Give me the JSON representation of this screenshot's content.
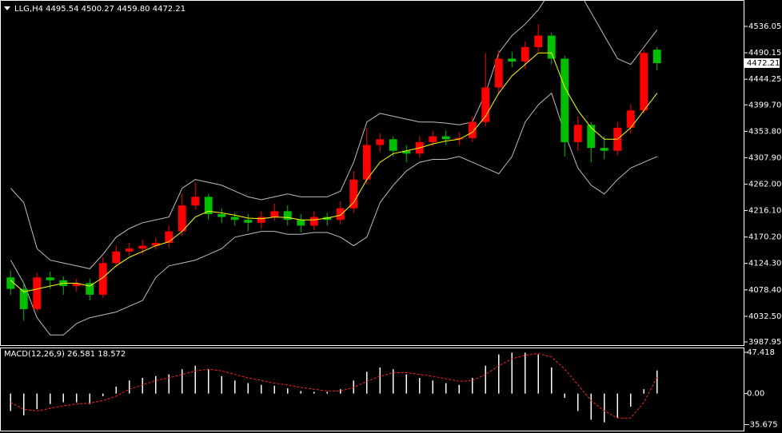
{
  "chart_data": {
    "type": "candlestick",
    "title": "LLG,H4  4495.54 4500.27 4459.80 4472.21",
    "up_color": "#ff0000",
    "down_color": "#00c000",
    "open": [
      4100,
      4080,
      4045,
      4100,
      4095,
      4085,
      4090,
      4070,
      4125,
      4145,
      4150,
      4155,
      4160,
      4180,
      4225,
      4240,
      4210,
      4205,
      4200,
      4195,
      4205,
      4215,
      4200,
      4190,
      4205,
      4200,
      4220,
      4270,
      4330,
      4340,
      4320,
      4315,
      4335,
      4345,
      4340,
      4342,
      4370,
      4430,
      4480,
      4475,
      4500,
      4520,
      4480,
      4335,
      4365,
      4325,
      4320,
      4360,
      4390,
      4495.54
    ],
    "high": [
      4112,
      4092,
      4108,
      4110,
      4102,
      4098,
      4098,
      4135,
      4155,
      4160,
      4165,
      4168,
      4190,
      4245,
      4265,
      4245,
      4220,
      4212,
      4210,
      4215,
      4228,
      4225,
      4210,
      4215,
      4212,
      4232,
      4285,
      4360,
      4350,
      4345,
      4330,
      4345,
      4355,
      4355,
      4352,
      4380,
      4490,
      4495,
      4492,
      4510,
      4540,
      4525,
      4485,
      4380,
      4370,
      4345,
      4370,
      4400,
      4495,
      4500.27
    ],
    "low": [
      4070,
      4025,
      4040,
      4080,
      4070,
      4075,
      4060,
      4065,
      4118,
      4138,
      4140,
      4148,
      4152,
      4172,
      4218,
      4200,
      4195,
      4190,
      4180,
      4185,
      4198,
      4190,
      4178,
      4182,
      4190,
      4192,
      4212,
      4262,
      4318,
      4310,
      4300,
      4308,
      4328,
      4330,
      4330,
      4335,
      4362,
      4420,
      4465,
      4462,
      4492,
      4470,
      4310,
      4320,
      4300,
      4305,
      4312,
      4350,
      4385,
      4459.8
    ],
    "close": [
      4080,
      4045,
      4100,
      4095,
      4085,
      4090,
      4070,
      4125,
      4145,
      4150,
      4155,
      4160,
      4180,
      4225,
      4240,
      4210,
      4205,
      4200,
      4195,
      4205,
      4215,
      4200,
      4190,
      4205,
      4200,
      4220,
      4270,
      4330,
      4340,
      4320,
      4315,
      4335,
      4345,
      4340,
      4342,
      4370,
      4430,
      4480,
      4475,
      4500,
      4520,
      4480,
      4335,
      4365,
      4325,
      4320,
      4360,
      4390,
      4490,
      4472.21
    ],
    "upper_band": {
      "color": "#bdbdbd",
      "values": [
        4255,
        4230,
        4150,
        4130,
        4125,
        4120,
        4115,
        4140,
        4170,
        4185,
        4195,
        4200,
        4205,
        4255,
        4270,
        4265,
        4260,
        4250,
        4240,
        4235,
        4240,
        4245,
        4240,
        4240,
        4240,
        4250,
        4300,
        4370,
        4385,
        4380,
        4375,
        4370,
        4370,
        4368,
        4365,
        4370,
        4420,
        4490,
        4520,
        4540,
        4565,
        4600,
        4620,
        4600,
        4560,
        4520,
        4480,
        4470,
        4500,
        4530
      ]
    },
    "lower_band": {
      "color": "#bdbdbd",
      "values": [
        4130,
        4090,
        4030,
        4000,
        4000,
        4020,
        4030,
        4035,
        4040,
        4050,
        4060,
        4100,
        4120,
        4125,
        4130,
        4140,
        4150,
        4170,
        4175,
        4180,
        4180,
        4175,
        4175,
        4178,
        4178,
        4170,
        4155,
        4170,
        4230,
        4260,
        4285,
        4300,
        4305,
        4305,
        4310,
        4300,
        4290,
        4280,
        4310,
        4370,
        4400,
        4420,
        4350,
        4290,
        4260,
        4245,
        4270,
        4290,
        4300,
        4310
      ]
    },
    "moving_average": {
      "color": "#ffff00",
      "values": [
        4095,
        4075,
        4080,
        4085,
        4090,
        4090,
        4085,
        4100,
        4120,
        4135,
        4145,
        4155,
        4162,
        4180,
        4205,
        4215,
        4212,
        4208,
        4203,
        4202,
        4205,
        4204,
        4200,
        4200,
        4203,
        4208,
        4230,
        4270,
        4300,
        4315,
        4320,
        4325,
        4332,
        4337,
        4340,
        4352,
        4380,
        4420,
        4450,
        4470,
        4490,
        4490,
        4430,
        4390,
        4360,
        4340,
        4340,
        4360,
        4390,
        4420
      ]
    },
    "last_price": 4472.21,
    "ylim": [
      3982.4,
      4577.7
    ],
    "yticks": [
      4536.05,
      4490.15,
      4444.25,
      {
        "value": 4399.7,
        "label": "4399.70"
      },
      {
        "value": 4353.8,
        "label": "4353.80"
      },
      {
        "value": 4307.9,
        "label": "4307.90"
      },
      {
        "value": 4262,
        "label": "4262.00"
      },
      {
        "value": 4216.1,
        "label": "4216.10"
      },
      {
        "value": 4170.2,
        "label": "4170.20"
      },
      {
        "value": 4124.3,
        "label": "4124.30"
      },
      {
        "value": 4078.4,
        "label": "4078.40"
      },
      {
        "value": 4032.5,
        "label": "4032.50"
      },
      3987.95
    ],
    "macd": {
      "title": "MACD(12,26,9) 26.581 18.572",
      "histogram": {
        "color": "#ffffff",
        "values": [
          -20,
          -25,
          -18,
          -12,
          -10,
          -10,
          -12,
          -3,
          8,
          15,
          18,
          20,
          22,
          28,
          32,
          28,
          20,
          15,
          12,
          10,
          9,
          6,
          3,
          2,
          2,
          5,
          15,
          25,
          30,
          28,
          22,
          18,
          15,
          12,
          10,
          18,
          32,
          45,
          47,
          47,
          45,
          30,
          -5,
          -20,
          -30,
          -33,
          -28,
          -15,
          5,
          26.581
        ]
      },
      "signal": {
        "color": "#ff2020",
        "values": [
          -10,
          -18,
          -20,
          -17,
          -14,
          -12,
          -11,
          -8,
          -3,
          5,
          10,
          15,
          18,
          22,
          26,
          28,
          26,
          22,
          18,
          15,
          12,
          10,
          7,
          5,
          3,
          3,
          7,
          14,
          20,
          24,
          24,
          22,
          20,
          17,
          14,
          15,
          22,
          32,
          40,
          44,
          46,
          42,
          28,
          10,
          -8,
          -20,
          -28,
          -28,
          -10,
          18.572
        ]
      },
      "ylim": [
        -40.7,
        52.0
      ],
      "yticks": [
        47.418,
        {
          "value": 0,
          "label": "0.00"
        },
        -35.675
      ]
    }
  }
}
